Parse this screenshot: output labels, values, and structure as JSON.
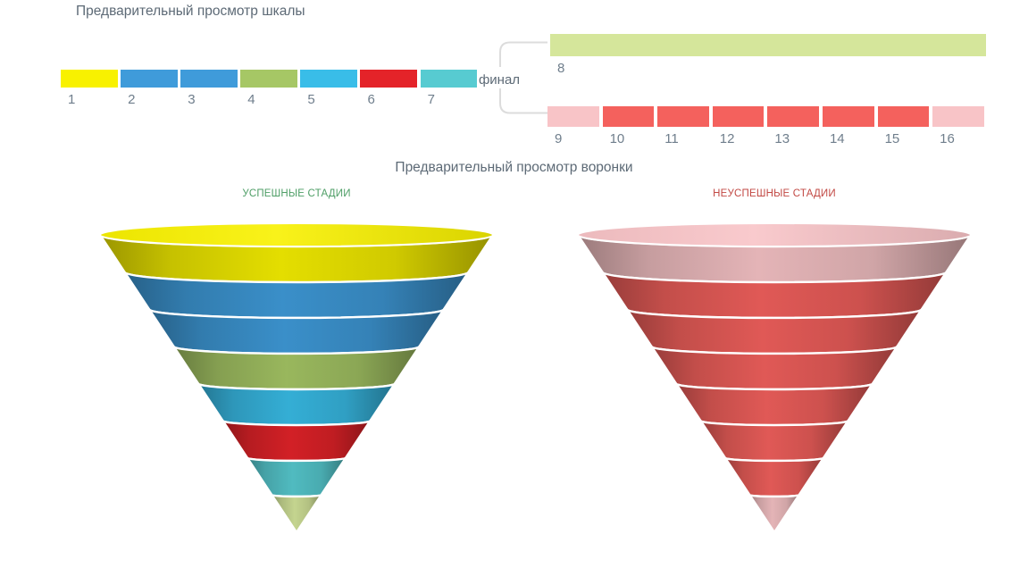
{
  "scale_preview": {
    "title": "Предварительный просмотр шкалы",
    "title_color": "#5D6A76",
    "number_color": "#6F7E8C",
    "segments": [
      {
        "label": "1",
        "color": "#F8F100"
      },
      {
        "label": "2",
        "color": "#3F9BDA"
      },
      {
        "label": "3",
        "color": "#3F9BDA"
      },
      {
        "label": "4",
        "color": "#A6C765"
      },
      {
        "label": "5",
        "color": "#39BDE8"
      },
      {
        "label": "6",
        "color": "#E42329"
      },
      {
        "label": "7",
        "color": "#57CBD1"
      }
    ],
    "final_label": "финал",
    "bracket_color": "#DCDCDC",
    "final_top_segment": {
      "label": "8",
      "color": "#D5E69B"
    },
    "final_bottom_segments": [
      {
        "label": "9",
        "color": "#F8C4C7"
      },
      {
        "label": "10",
        "color": "#F4615D"
      },
      {
        "label": "11",
        "color": "#F4615D"
      },
      {
        "label": "12",
        "color": "#F4615D"
      },
      {
        "label": "13",
        "color": "#F4615D"
      },
      {
        "label": "14",
        "color": "#F4615D"
      },
      {
        "label": "15",
        "color": "#F4615D"
      },
      {
        "label": "16",
        "color": "#F8C4C7"
      }
    ]
  },
  "funnel_preview": {
    "title": "Предварительный просмотр воронки",
    "success_funnel": {
      "label": "УСПЕШНЫЕ СТАДИИ",
      "label_color": "#4E9E66",
      "stage_colors": [
        "#F8F100",
        "#3F9BDA",
        "#3F9BDA",
        "#A6C765",
        "#39BDE8",
        "#E42329",
        "#57CBD1",
        "#D5E69B"
      ]
    },
    "fail_funnel": {
      "label": "НЕУСПЕШНЫЕ СТАДИИ",
      "label_color": "#C24944",
      "stage_colors": [
        "#F8C4C7",
        "#F4615D",
        "#F4615D",
        "#F4615D",
        "#F4615D",
        "#F4615D",
        "#F4615D",
        "#F8C4C7"
      ]
    }
  }
}
